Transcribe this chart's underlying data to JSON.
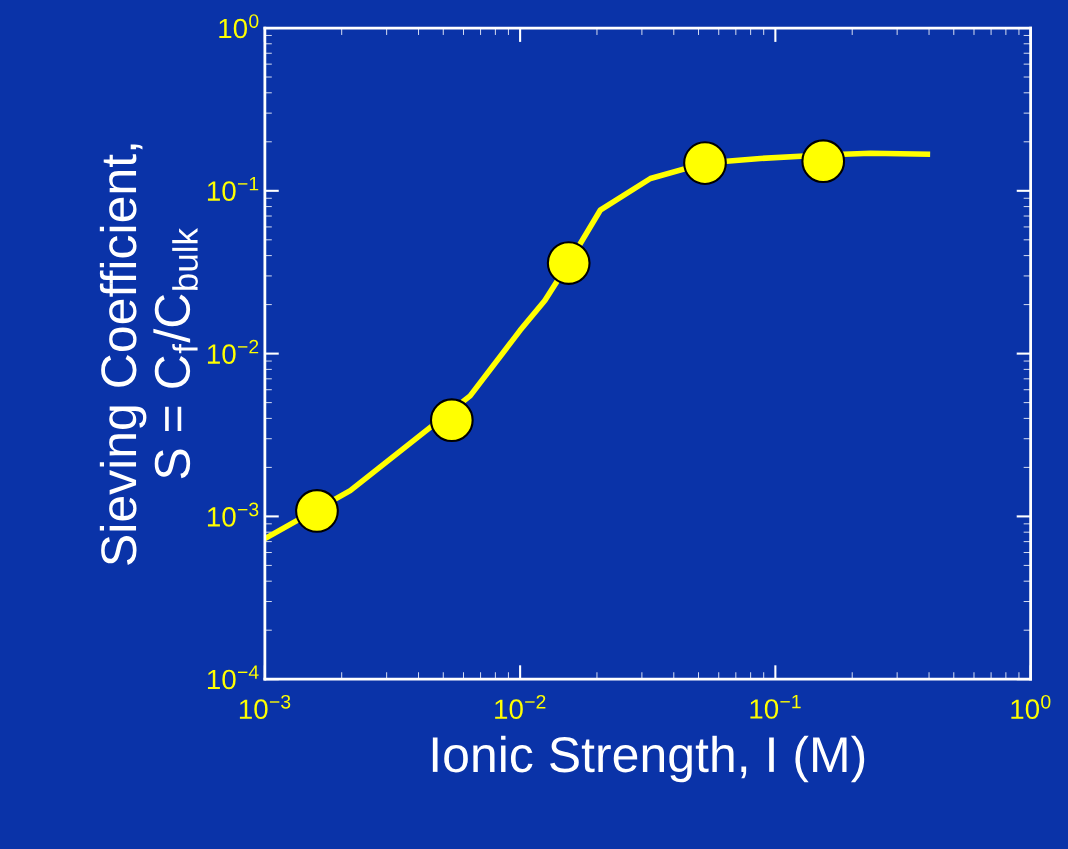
{
  "chart_data": {
    "type": "scatter",
    "xlabel": "Ionic Strength, I (M)",
    "ylabel": "Sieving Coefficient,\nS = C$_{f}$/C$_{bulk}$",
    "log": "xy",
    "xlim": [
      0.001,
      1
    ],
    "ylim": [
      0.0001,
      1
    ],
    "xticks": [
      {
        "value": 0.001,
        "label": "10$^{−3}$"
      },
      {
        "value": 0.01,
        "label": "10$^{−2}$"
      },
      {
        "value": 0.1,
        "label": "10$^{−1}$"
      },
      {
        "value": 1,
        "label": "10$^{0}$"
      }
    ],
    "yticks": [
      {
        "value": 0.0001,
        "label": "10$^{−4}$"
      },
      {
        "value": 0.001,
        "label": "10$^{−3}$"
      },
      {
        "value": 0.01,
        "label": "10$^{−2}$"
      },
      {
        "value": 0.1,
        "label": "10$^{−1}$"
      },
      {
        "value": 1,
        "label": "10$^{0}$"
      }
    ],
    "grid": false,
    "series": [
      {
        "type": "line",
        "marker": "none",
        "color": "#ffff00",
        "line_style": "solid",
        "x": [
          0.001,
          0.00216,
          0.00637,
          0.01,
          0.0125,
          0.0155,
          0.0206,
          0.0324,
          0.053,
          0.0873,
          0.154,
          0.236,
          0.394
        ],
        "values": [
          0.00073,
          0.00144,
          0.0055,
          0.0139,
          0.0212,
          0.036,
          0.076,
          0.119,
          0.148,
          0.158,
          0.166,
          0.17,
          0.168
        ]
      },
      {
        "marker": "circle",
        "color": "#ffff00",
        "x": [
          0.0016,
          0.0054,
          0.0155,
          0.053,
          0.154
        ],
        "values": [
          0.00108,
          0.0039,
          0.036,
          0.148,
          0.152
        ]
      }
    ]
  }
}
